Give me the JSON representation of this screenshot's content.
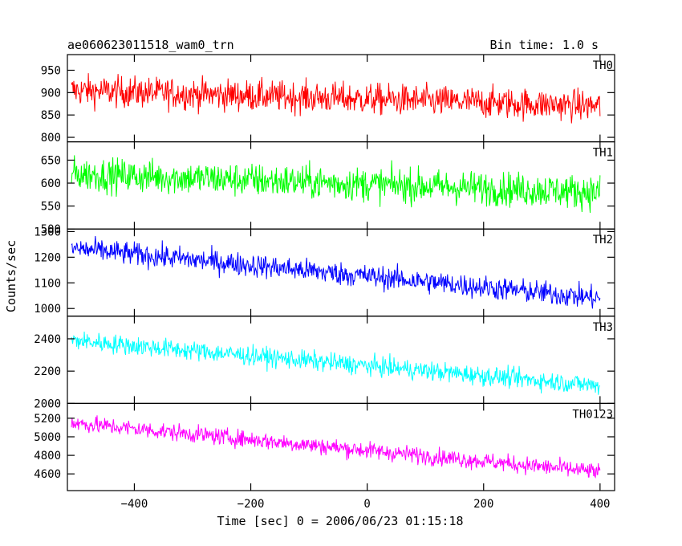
{
  "chart_data": {
    "type": "line",
    "title": "ae060623011518_wam0_trn",
    "subtitle": "Bin time: 1.0 s",
    "xlabel": "Time [sec] 0 = 2006/06/23 01:15:18",
    "ylabel": "Counts/sec",
    "xlim": [
      -515,
      425
    ],
    "x_ticks": [
      -400,
      -200,
      0,
      200,
      400
    ],
    "x_tick_labels": [
      "−400",
      "−200",
      "0",
      "200",
      "400"
    ],
    "x_range": [
      -508,
      400
    ],
    "bin_time": 1.0,
    "series": [
      {
        "name": "TH0",
        "color": "#ff0000",
        "ylim": [
          790,
          985
        ],
        "y_ticks": [
          800,
          850,
          900,
          950
        ],
        "y_tick_labels": [
          "800",
          "850",
          "900",
          "950"
        ],
        "trend_start": 905,
        "trend_end": 870,
        "noise": 32
      },
      {
        "name": "TH1",
        "color": "#00ff00",
        "ylim": [
          500,
          690
        ],
        "y_ticks": [
          500,
          550,
          600,
          650
        ],
        "y_tick_labels": [
          "500",
          "550",
          "600",
          "650"
        ],
        "trend_start": 620,
        "trend_end": 580,
        "noise": 34
      },
      {
        "name": "TH2",
        "color": "#0000ff",
        "ylim": [
          970,
          1310
        ],
        "y_ticks": [
          1000,
          1100,
          1200,
          1300
        ],
        "y_tick_labels": [
          "1000",
          "1100",
          "1200",
          "1300"
        ],
        "trend_start": 1235,
        "trend_end": 1040,
        "noise": 42
      },
      {
        "name": "TH3",
        "color": "#00ffff",
        "ylim": [
          2000,
          2540
        ],
        "y_ticks": [
          2000,
          2200,
          2400
        ],
        "y_tick_labels": [
          "2000",
          "2200",
          "2400"
        ],
        "trend_start": 2390,
        "trend_end": 2110,
        "noise": 55
      },
      {
        "name": "TH0123",
        "color": "#ff00ff",
        "ylim": [
          4420,
          5360
        ],
        "y_ticks": [
          4600,
          4800,
          5000,
          5200
        ],
        "y_tick_labels": [
          "4600",
          "4800",
          "5000",
          "5200"
        ],
        "trend_start": 5150,
        "trend_end": 4620,
        "noise": 85
      }
    ]
  }
}
